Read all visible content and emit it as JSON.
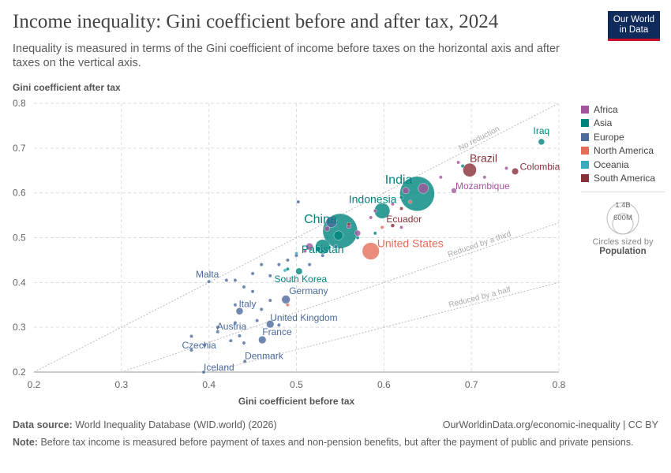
{
  "title": "Income inequality: Gini coefficient before and after tax, 2024",
  "subtitle": "Inequality is measured in terms of the Gini coefficient of income before taxes on the horizontal axis and after taxes on the vertical axis.",
  "logo": "Our World in Data",
  "footer": {
    "source_label": "Data source:",
    "source": "World Inequality Database (WID.world) (2026)",
    "url": "OurWorldinData.org/economic-inequality | CC BY",
    "note_label": "Note:",
    "note": "Before tax income is measured before payment of taxes and non-pension benefits, but after the payment of public and private pensions."
  },
  "size_legend": {
    "big": "1.4B",
    "small": "600M",
    "caption": "Circles sized by",
    "metric": "Population"
  },
  "chart_data": {
    "type": "scatter",
    "xlabel": "Gini coefficient before tax",
    "ylabel": "Gini coefficient after tax",
    "xlim": [
      0.2,
      0.8
    ],
    "ylim": [
      0.2,
      0.8
    ],
    "xticks": [
      "0.2",
      "0.3",
      "0.4",
      "0.5",
      "0.6",
      "0.7",
      "0.8"
    ],
    "yticks": [
      "0.2",
      "0.3",
      "0.4",
      "0.5",
      "0.6",
      "0.7",
      "0.8"
    ],
    "grid": true,
    "legend_placement": "right",
    "reference_lines": [
      {
        "label": "No reduction",
        "ratio": 1
      },
      {
        "label": "Reduced by a third",
        "ratio": 0.6667
      },
      {
        "label": "Reduced by a half",
        "ratio": 0.5
      }
    ],
    "colors": {
      "Africa": "#a2559c",
      "Asia": "#00847e",
      "Europe": "#4c6a9c",
      "North America": "#e56e5a",
      "Oceania": "#38aaba",
      "South America": "#883039"
    },
    "legend": [
      "Africa",
      "Asia",
      "Europe",
      "North America",
      "Oceania",
      "South America"
    ],
    "points": [
      {
        "name": "India",
        "c": "Asia",
        "x": 0.638,
        "y": 0.598,
        "pop": 1400,
        "label": true
      },
      {
        "name": "China",
        "c": "Asia",
        "x": 0.55,
        "y": 0.515,
        "pop": 1400,
        "label": true
      },
      {
        "name": "Indonesia",
        "c": "Asia",
        "x": 0.598,
        "y": 0.56,
        "pop": 280,
        "label": true
      },
      {
        "name": "Pakistan",
        "c": "Asia",
        "x": 0.53,
        "y": 0.48,
        "pop": 240,
        "label": true
      },
      {
        "name": "United States",
        "c": "North America",
        "x": 0.585,
        "y": 0.47,
        "pop": 340,
        "label": true
      },
      {
        "name": "Brazil",
        "c": "South America",
        "x": 0.698,
        "y": 0.651,
        "pop": 210,
        "label": true
      },
      {
        "name": "Colombia",
        "c": "South America",
        "x": 0.75,
        "y": 0.648,
        "pop": 52,
        "label": true
      },
      {
        "name": "Iraq",
        "c": "Asia",
        "x": 0.78,
        "y": 0.714,
        "pop": 45,
        "label": true
      },
      {
        "name": "Mozambique",
        "c": "Africa",
        "x": 0.68,
        "y": 0.605,
        "pop": 33,
        "label": true
      },
      {
        "name": "Ecuador",
        "c": "South America",
        "x": 0.61,
        "y": 0.527,
        "pop": 18,
        "label": true
      },
      {
        "name": "South Korea",
        "c": "Asia",
        "x": 0.503,
        "y": 0.425,
        "pop": 51,
        "label": true
      },
      {
        "name": "Malta",
        "c": "Europe",
        "x": 0.4,
        "y": 0.402,
        "pop": 0.5,
        "label": true
      },
      {
        "name": "Germany",
        "c": "Europe",
        "x": 0.488,
        "y": 0.362,
        "pop": 84,
        "label": true
      },
      {
        "name": "Italy",
        "c": "Europe",
        "x": 0.435,
        "y": 0.336,
        "pop": 59,
        "label": true
      },
      {
        "name": "United Kingdom",
        "c": "Europe",
        "x": 0.47,
        "y": 0.307,
        "pop": 68,
        "label": true
      },
      {
        "name": "Austria",
        "c": "Europe",
        "x": 0.435,
        "y": 0.281,
        "pop": 9,
        "label": true
      },
      {
        "name": "France",
        "c": "Europe",
        "x": 0.461,
        "y": 0.272,
        "pop": 68,
        "label": true
      },
      {
        "name": "Czechia",
        "c": "Europe",
        "x": 0.38,
        "y": 0.249,
        "pop": 11,
        "label": true
      },
      {
        "name": "Denmark",
        "c": "Europe",
        "x": 0.441,
        "y": 0.224,
        "pop": 6,
        "label": true
      },
      {
        "name": "Iceland",
        "c": "Europe",
        "x": 0.394,
        "y": 0.2,
        "pop": 0.4,
        "label": true
      },
      {
        "c": "Africa",
        "x": 0.515,
        "y": 0.48,
        "pop": 60
      },
      {
        "c": "Africa",
        "x": 0.57,
        "y": 0.51,
        "pop": 40
      },
      {
        "c": "Africa",
        "x": 0.645,
        "y": 0.61,
        "pop": 120
      },
      {
        "c": "Africa",
        "x": 0.625,
        "y": 0.605,
        "pop": 50
      },
      {
        "c": "Africa",
        "x": 0.685,
        "y": 0.668,
        "pop": 10
      },
      {
        "c": "Africa",
        "x": 0.74,
        "y": 0.655,
        "pop": 5
      },
      {
        "c": "Africa",
        "x": 0.715,
        "y": 0.635,
        "pop": 5
      },
      {
        "c": "Africa",
        "x": 0.665,
        "y": 0.635,
        "pop": 5
      },
      {
        "c": "Africa",
        "x": 0.535,
        "y": 0.52,
        "pop": 30
      },
      {
        "c": "Africa",
        "x": 0.56,
        "y": 0.525,
        "pop": 20
      },
      {
        "c": "Africa",
        "x": 0.585,
        "y": 0.545,
        "pop": 10
      },
      {
        "c": "Africa",
        "x": 0.61,
        "y": 0.575,
        "pop": 8
      },
      {
        "c": "Africa",
        "x": 0.62,
        "y": 0.523,
        "pop": 5
      },
      {
        "c": "Africa",
        "x": 0.51,
        "y": 0.47,
        "pop": 5
      },
      {
        "c": "Africa",
        "x": 0.59,
        "y": 0.56,
        "pop": 5
      },
      {
        "c": "Asia",
        "x": 0.548,
        "y": 0.505,
        "pop": 100
      },
      {
        "c": "Asia",
        "x": 0.525,
        "y": 0.475,
        "pop": 30
      },
      {
        "c": "Asia",
        "x": 0.59,
        "y": 0.51,
        "pop": 5
      },
      {
        "c": "Asia",
        "x": 0.69,
        "y": 0.66,
        "pop": 5
      },
      {
        "c": "Asia",
        "x": 0.53,
        "y": 0.47,
        "pop": 10
      },
      {
        "c": "Asia",
        "x": 0.62,
        "y": 0.59,
        "pop": 5
      },
      {
        "c": "Asia",
        "x": 0.57,
        "y": 0.5,
        "pop": 5
      },
      {
        "c": "Asia",
        "x": 0.49,
        "y": 0.43,
        "pop": 3
      },
      {
        "c": "Europe",
        "x": 0.54,
        "y": 0.535,
        "pop": 140
      },
      {
        "c": "Europe",
        "x": 0.502,
        "y": 0.58,
        "pop": 2
      },
      {
        "c": "Europe",
        "x": 0.42,
        "y": 0.405,
        "pop": 3
      },
      {
        "c": "Europe",
        "x": 0.44,
        "y": 0.39,
        "pop": 4
      },
      {
        "c": "Europe",
        "x": 0.47,
        "y": 0.36,
        "pop": 3
      },
      {
        "c": "Europe",
        "x": 0.46,
        "y": 0.34,
        "pop": 5
      },
      {
        "c": "Europe",
        "x": 0.455,
        "y": 0.315,
        "pop": 10
      },
      {
        "c": "Europe",
        "x": 0.43,
        "y": 0.35,
        "pop": 4
      },
      {
        "c": "Europe",
        "x": 0.41,
        "y": 0.3,
        "pop": 4
      },
      {
        "c": "Europe",
        "x": 0.41,
        "y": 0.29,
        "pop": 3
      },
      {
        "c": "Europe",
        "x": 0.43,
        "y": 0.31,
        "pop": 2
      },
      {
        "c": "Europe",
        "x": 0.38,
        "y": 0.28,
        "pop": 2
      },
      {
        "c": "Europe",
        "x": 0.395,
        "y": 0.26,
        "pop": 3
      },
      {
        "c": "Europe",
        "x": 0.425,
        "y": 0.27,
        "pop": 2
      },
      {
        "c": "Europe",
        "x": 0.44,
        "y": 0.265,
        "pop": 6
      },
      {
        "c": "Europe",
        "x": 0.48,
        "y": 0.305,
        "pop": 2
      },
      {
        "c": "Europe",
        "x": 0.48,
        "y": 0.44,
        "pop": 3
      },
      {
        "c": "Europe",
        "x": 0.49,
        "y": 0.45,
        "pop": 3
      },
      {
        "c": "Europe",
        "x": 0.5,
        "y": 0.46,
        "pop": 2
      },
      {
        "c": "Europe",
        "x": 0.47,
        "y": 0.415,
        "pop": 10
      },
      {
        "c": "Europe",
        "x": 0.43,
        "y": 0.405,
        "pop": 2
      },
      {
        "c": "Europe",
        "x": 0.46,
        "y": 0.44,
        "pop": 2
      },
      {
        "c": "Europe",
        "x": 0.45,
        "y": 0.38,
        "pop": 2
      },
      {
        "c": "Europe",
        "x": 0.45,
        "y": 0.42,
        "pop": 3
      },
      {
        "c": "Europe",
        "x": 0.53,
        "y": 0.46,
        "pop": 2
      },
      {
        "c": "Europe",
        "x": 0.515,
        "y": 0.44,
        "pop": 2
      },
      {
        "c": "Europe",
        "x": 0.545,
        "y": 0.48,
        "pop": 2
      },
      {
        "c": "North America",
        "x": 0.49,
        "y": 0.35,
        "pop": 2
      },
      {
        "c": "North America",
        "x": 0.598,
        "y": 0.523,
        "pop": 5
      },
      {
        "c": "North America",
        "x": 0.63,
        "y": 0.58,
        "pop": 5
      },
      {
        "c": "Oceania",
        "x": 0.5,
        "y": 0.465,
        "pop": 3
      },
      {
        "c": "Oceania",
        "x": 0.487,
        "y": 0.427,
        "pop": 5
      },
      {
        "c": "South America",
        "x": 0.56,
        "y": 0.53,
        "pop": 10
      },
      {
        "c": "South America",
        "x": 0.62,
        "y": 0.565,
        "pop": 10
      }
    ]
  }
}
